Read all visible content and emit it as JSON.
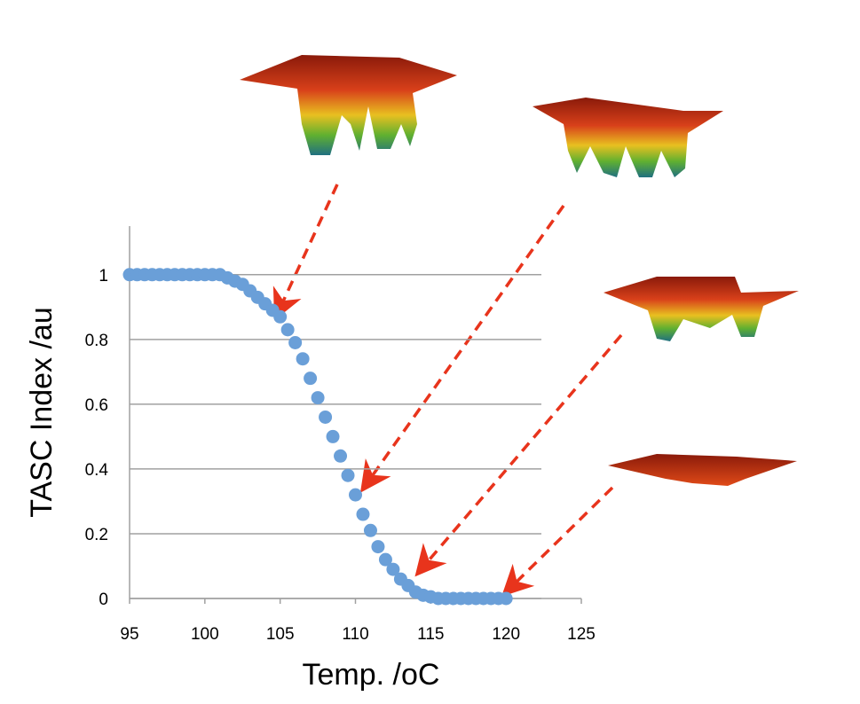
{
  "chart_data": {
    "type": "scatter",
    "x_label": "Temp. /oC",
    "y_label": "TASC Index /au",
    "x": [
      95,
      95.5,
      96,
      96.5,
      97,
      97.5,
      98,
      98.5,
      99,
      99.5,
      100,
      100.5,
      101,
      101.5,
      102,
      102.5,
      103,
      103.5,
      104,
      104.5,
      105,
      105.5,
      106,
      106.5,
      107,
      107.5,
      108,
      108.5,
      109,
      109.5,
      110,
      110.5,
      111,
      111.5,
      112,
      112.5,
      113,
      113.5,
      114,
      114.5,
      115,
      115.5,
      116,
      116.5,
      117,
      117.5,
      118,
      118.5,
      119,
      119.5,
      120
    ],
    "series": [
      {
        "color": "#6a9fd8",
        "values": [
          1,
          1,
          1,
          1,
          1,
          1,
          1,
          1,
          1,
          1,
          1,
          1,
          1,
          0.99,
          0.98,
          0.97,
          0.95,
          0.93,
          0.91,
          0.89,
          0.87,
          0.83,
          0.79,
          0.74,
          0.68,
          0.62,
          0.56,
          0.5,
          0.44,
          0.38,
          0.32,
          0.26,
          0.21,
          0.16,
          0.12,
          0.09,
          0.06,
          0.04,
          0.02,
          0.01,
          0.005,
          0,
          0,
          0,
          0,
          0,
          0,
          0,
          0,
          0,
          0
        ]
      }
    ],
    "xlim": [
      95,
      125
    ],
    "xticks": [
      95,
      100,
      105,
      110,
      115,
      120,
      125
    ],
    "ylim": [
      0,
      1.15
    ],
    "yticks": [
      0,
      {
        "value": 0.2,
        "label": "0.2"
      },
      {
        "value": 0.4,
        "label": "0.4"
      },
      {
        "value": 0.6,
        "label": "0.6"
      },
      {
        "value": 0.8,
        "label": "0.8"
      },
      1
    ],
    "grid": true
  }
}
